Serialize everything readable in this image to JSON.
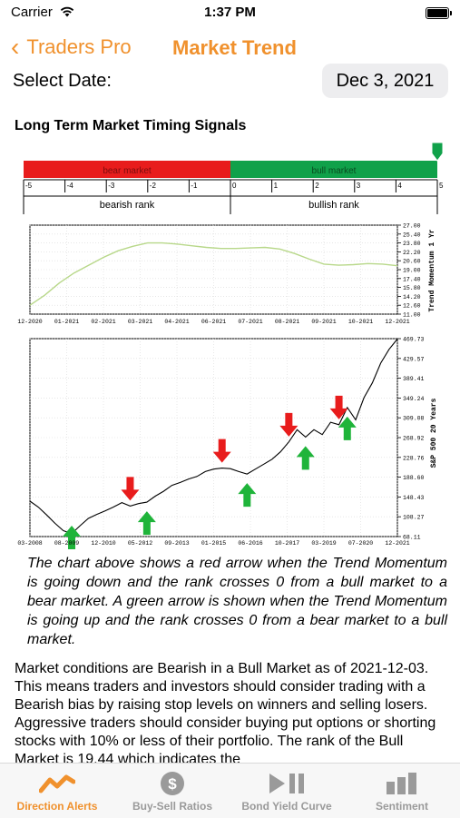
{
  "status": {
    "carrier": "Carrier",
    "time": "1:37 PM"
  },
  "nav": {
    "back_label": "Traders Pro",
    "title": "Market Trend"
  },
  "date": {
    "label": "Select Date:",
    "value": "Dec 3, 2021"
  },
  "section_title": "Long Term Market Timing Signals",
  "rank_chart": {
    "bear_label": "bear market",
    "bull_label": "bull market",
    "ticks": [
      "-5",
      "-4",
      "-3",
      "-2",
      "-1",
      "0",
      "1",
      "2",
      "3",
      "4",
      "5"
    ],
    "bearish_label": "bearish rank",
    "bullish_label": "bullish rank",
    "colors": {
      "bear": "#e81c1c",
      "bull": "#10a14a"
    }
  },
  "chart_data": [
    {
      "type": "line",
      "ylabel": "Trend Momentum 1 Yr",
      "x_ticks": [
        "12-2020",
        "01-2021",
        "02-2021",
        "03-2021",
        "04-2021",
        "06-2021",
        "07-2021",
        "08-2021",
        "09-2021",
        "10-2021",
        "12-2021"
      ],
      "y_ticks": [
        "27.00",
        "25.40",
        "23.80",
        "22.20",
        "20.60",
        "19.00",
        "17.40",
        "15.80",
        "14.20",
        "12.60",
        "11.00"
      ],
      "ylim": [
        11.0,
        27.0
      ],
      "series": [
        {
          "values": [
            12.6,
            14.4,
            16.6,
            18.4,
            19.8,
            21.2,
            22.4,
            23.2,
            23.8,
            23.8,
            23.6,
            23.3,
            23.0,
            22.8,
            22.8,
            22.9,
            23.0,
            22.7,
            21.9,
            20.9,
            20.0,
            19.8,
            19.9,
            20.1,
            20.0,
            19.7
          ]
        }
      ],
      "color": "#b8d88a"
    },
    {
      "type": "line",
      "ylabel": "S&P 500 20 Years",
      "x_ticks": [
        "03-2008",
        "08-2009",
        "12-2010",
        "05-2012",
        "09-2013",
        "01-2015",
        "06-2016",
        "10-2017",
        "03-2019",
        "07-2020",
        "12-2021"
      ],
      "y_ticks": [
        "469.73",
        "429.57",
        "389.41",
        "349.24",
        "309.08",
        "268.92",
        "228.76",
        "188.60",
        "148.43",
        "108.27",
        "68.11"
      ],
      "ylim": [
        68.11,
        469.73
      ],
      "series": [
        {
          "values": [
            140,
            128,
            112,
            95,
            80,
            74,
            90,
            105,
            113,
            120,
            128,
            137,
            130,
            135,
            138,
            150,
            160,
            172,
            178,
            185,
            190,
            200,
            205,
            207,
            206,
            200,
            195,
            205,
            215,
            225,
            240,
            260,
            285,
            270,
            285,
            275,
            300,
            295,
            330,
            305,
            350,
            380,
            420,
            448,
            469
          ]
        }
      ],
      "red_arrows": [
        {
          "x_index": 12,
          "label": "sell"
        },
        {
          "x_index": 23,
          "label": "sell"
        },
        {
          "x_index": 31,
          "label": "sell"
        },
        {
          "x_index": 37,
          "label": "sell"
        }
      ],
      "green_arrows": [
        {
          "x_index": 5,
          "label": "buy"
        },
        {
          "x_index": 14,
          "label": "buy"
        },
        {
          "x_index": 26,
          "label": "buy"
        },
        {
          "x_index": 33,
          "label": "buy"
        },
        {
          "x_index": 38,
          "label": "buy"
        }
      ],
      "colors": {
        "line": "#000000",
        "red": "#e81c1c",
        "green": "#1fb43a"
      }
    }
  ],
  "caption": "The chart above shows a red arrow when the Trend Momentum is going down and the rank crosses 0 from a bull market to a bear market. A green arrow is shown when the Trend Momentum is going up and the rank crosses 0 from a bear market to a bull market.",
  "body": "Market conditions are Bearish in a Bull Market as of 2021-12-03. This means traders and investors should consider trading with a Bearish bias by raising stop levels on winners and selling losers. Aggressive traders should consider buying put options or shorting stocks with 10% or less of their portfolio. The rank of the Bull Market is 19.44 which indicates the",
  "tabs": [
    {
      "label": "Direction Alerts",
      "icon": "trend-icon",
      "active": true
    },
    {
      "label": "Buy-Sell Ratios",
      "icon": "dollar-icon",
      "active": false
    },
    {
      "label": "Bond Yield Curve",
      "icon": "play-pause-icon",
      "active": false
    },
    {
      "label": "Sentiment",
      "icon": "bar-chart-icon",
      "active": false
    }
  ],
  "accent_color": "#f0912d"
}
